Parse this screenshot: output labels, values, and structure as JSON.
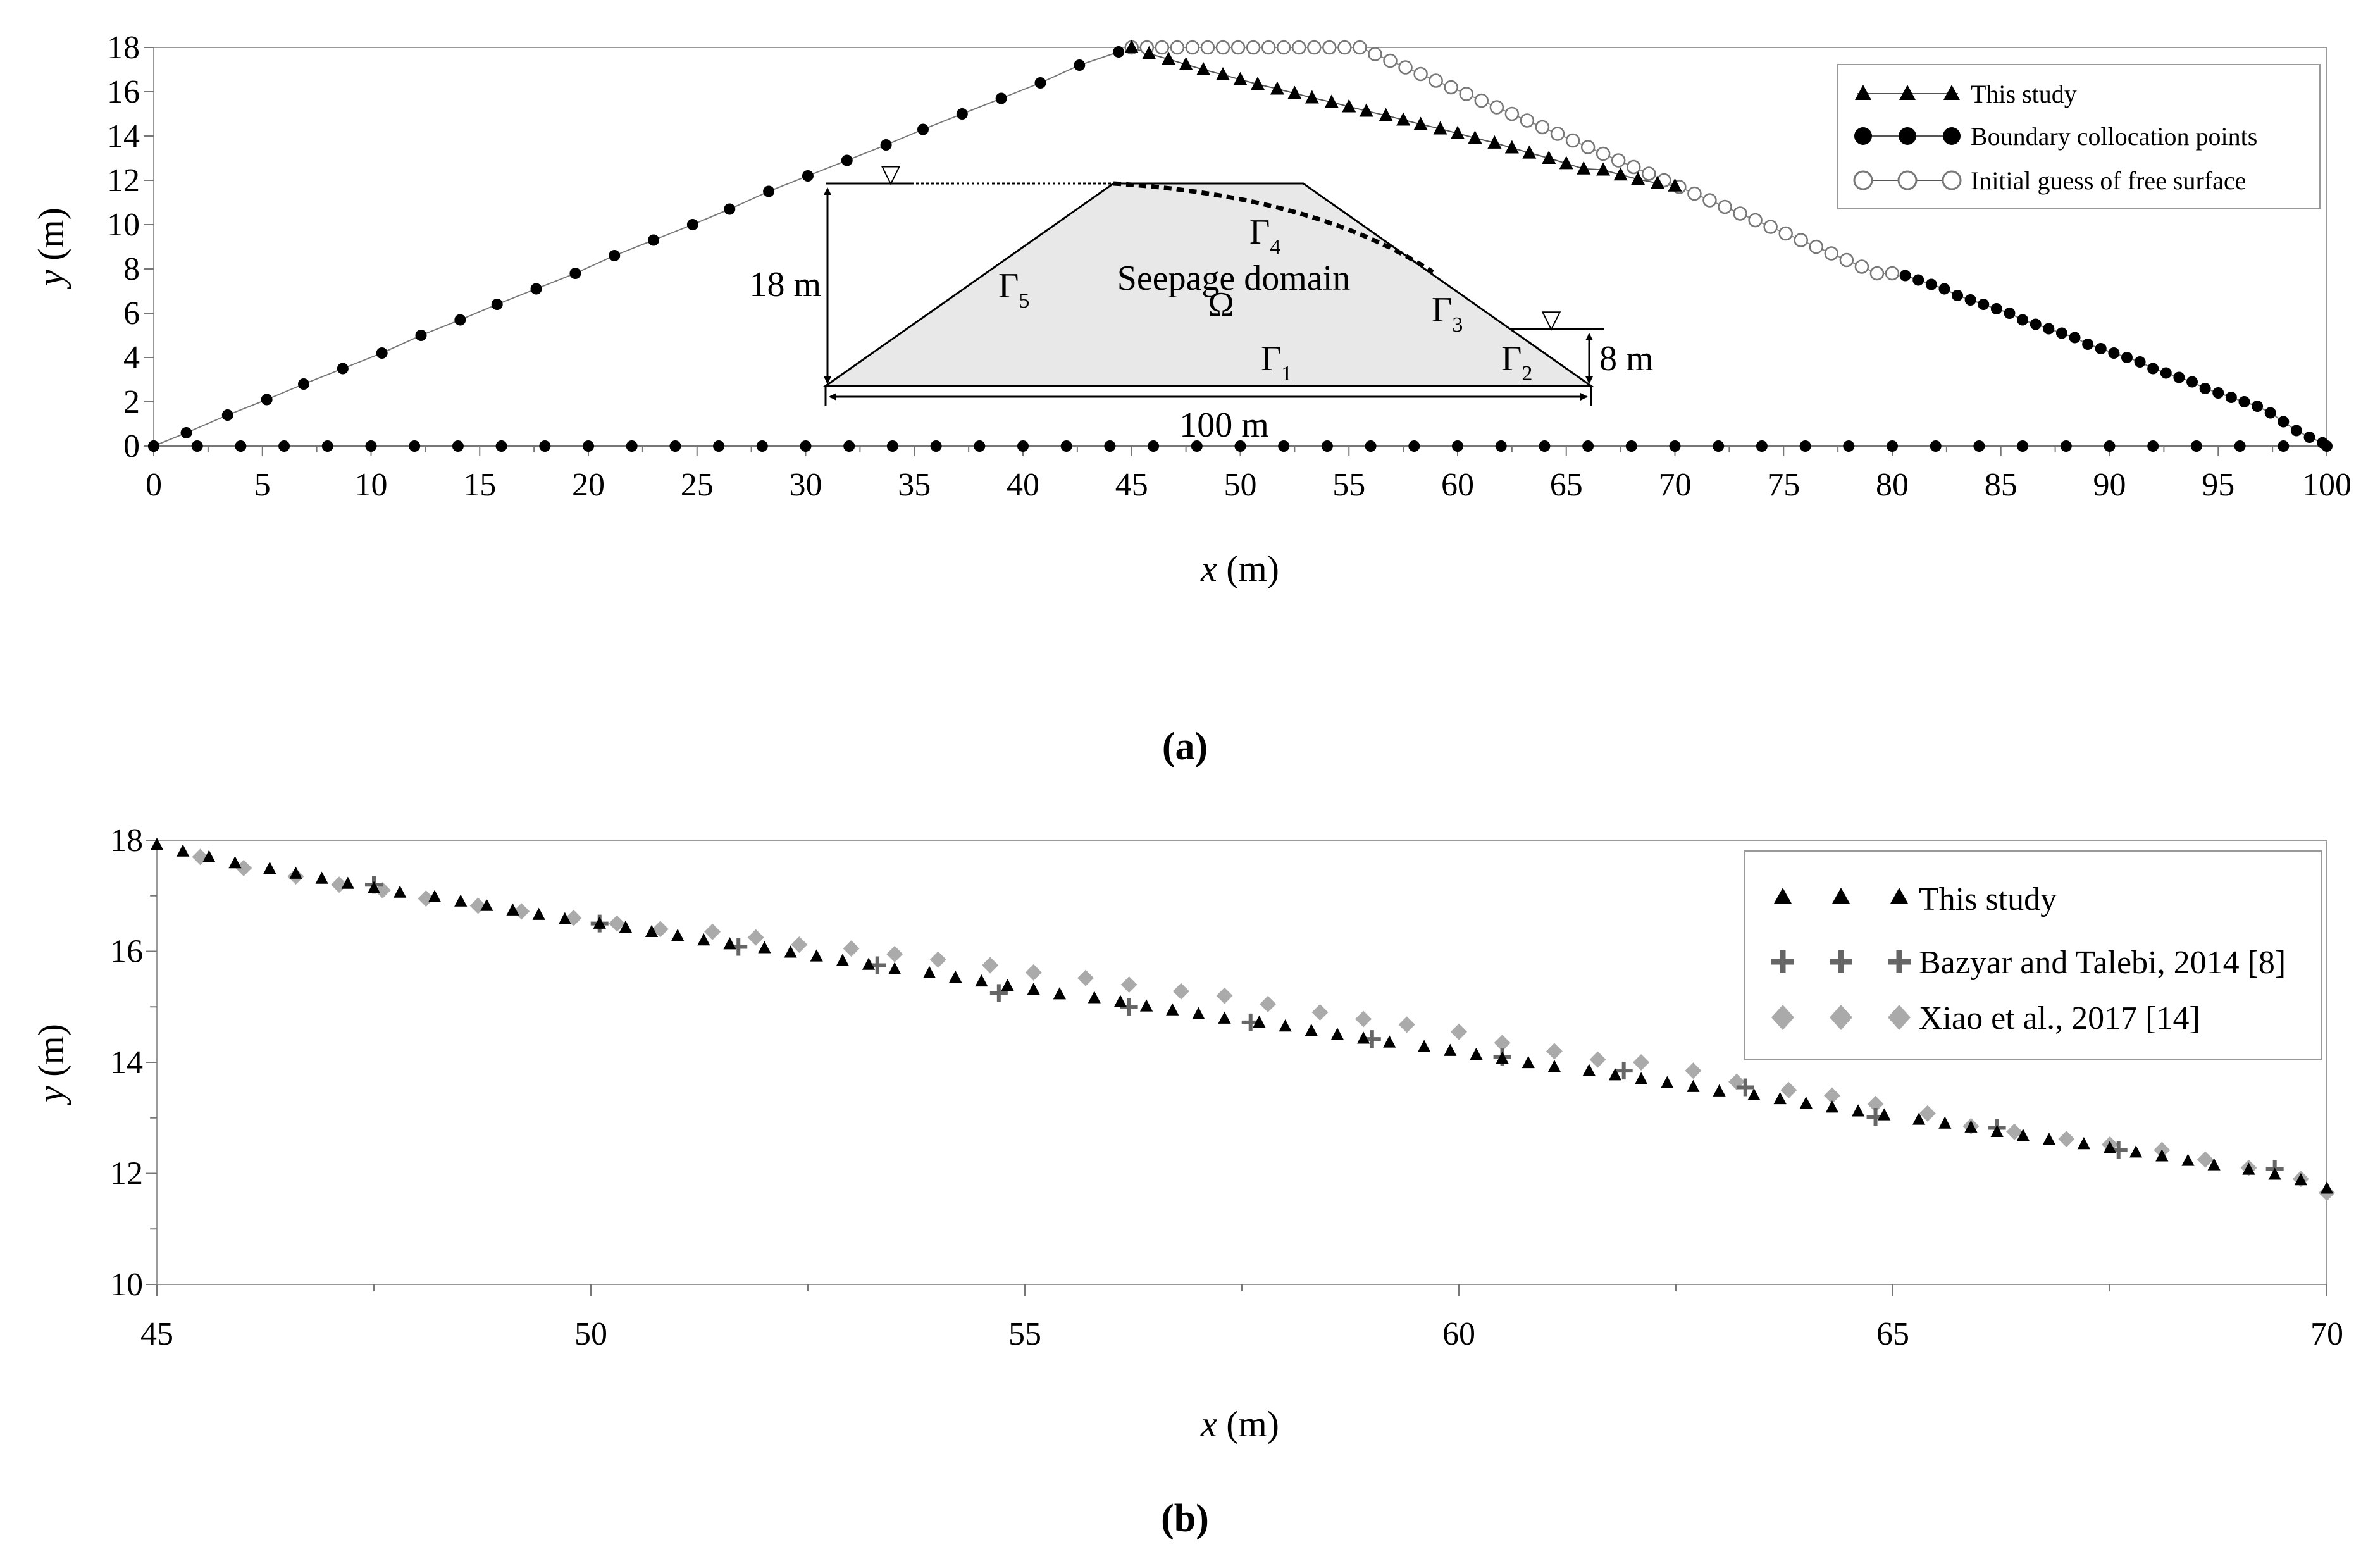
{
  "chart_data": [
    {
      "id": "a",
      "type": "scatter",
      "caption": "(a)",
      "xlabel_italic": "x",
      "xlabel_unit": "(m)",
      "ylabel_italic": "y",
      "ylabel_unit": "(m)",
      "xlim": [
        0,
        100
      ],
      "ylim": [
        0,
        18
      ],
      "xticks": [
        0,
        5,
        10,
        15,
        20,
        25,
        30,
        35,
        40,
        45,
        50,
        55,
        60,
        65,
        70,
        75,
        80,
        85,
        90,
        95,
        100
      ],
      "yticks": [
        0,
        2,
        4,
        6,
        8,
        10,
        12,
        14,
        16,
        18
      ],
      "legend": {
        "position": "top-right",
        "entries": [
          "This study",
          "Boundary collocation points",
          "Initial guess of free surface"
        ]
      },
      "series": [
        {
          "name": "This study",
          "marker": "triangle",
          "x": [
            45,
            45.8,
            46.7,
            47.5,
            48.3,
            49.2,
            50,
            50.8,
            51.7,
            52.5,
            53.3,
            54.2,
            55,
            55.8,
            56.7,
            57.5,
            58.3,
            59.2,
            60,
            60.8,
            61.7,
            62.5,
            63.3,
            64.2,
            65,
            65.8,
            66.7,
            67.5,
            68.3,
            69.2,
            70
          ],
          "y": [
            18,
            17.72,
            17.47,
            17.23,
            17.0,
            16.77,
            16.55,
            16.34,
            16.13,
            15.93,
            15.73,
            15.53,
            15.33,
            15.13,
            14.93,
            14.73,
            14.53,
            14.33,
            14.12,
            13.91,
            13.69,
            13.47,
            13.24,
            13.0,
            12.76,
            12.52,
            12.47,
            12.25,
            12.05,
            11.87,
            11.75
          ]
        },
        {
          "name": "Boundary collocation points",
          "marker": "filled-circle",
          "segments": [
            {
              "label": "upstream face",
              "x": [
                0,
                1.5,
                3.4,
                5.2,
                6.9,
                8.7,
                10.5,
                12.3,
                14.1,
                15.8,
                17.6,
                19.4,
                21.2,
                23.0,
                24.8,
                26.5,
                28.3,
                30.1,
                31.9,
                33.7,
                35.4,
                37.2,
                39.0,
                40.8,
                42.6,
                44.4
              ],
              "y": [
                0,
                0.6,
                1.4,
                2.1,
                2.8,
                3.5,
                4.2,
                5.0,
                5.7,
                6.4,
                7.1,
                7.8,
                8.6,
                9.3,
                10.0,
                10.7,
                11.5,
                12.2,
                12.9,
                13.6,
                14.3,
                15.0,
                15.7,
                16.4,
                17.2,
                17.8
              ]
            },
            {
              "label": "base",
              "x": [
                0,
                2,
                4,
                6,
                8,
                10,
                12,
                14,
                16,
                18,
                20,
                22,
                24,
                26,
                28,
                30,
                32,
                34,
                36,
                38,
                40,
                42,
                44,
                46,
                48,
                50,
                52,
                54,
                56,
                58,
                60,
                62,
                64,
                66,
                68,
                70,
                72,
                74,
                76,
                78,
                80,
                82,
                84,
                86,
                88,
                90,
                92,
                94,
                96,
                98,
                100
              ],
              "y": [
                0,
                0,
                0,
                0,
                0,
                0,
                0,
                0,
                0,
                0,
                0,
                0,
                0,
                0,
                0,
                0,
                0,
                0,
                0,
                0,
                0,
                0,
                0,
                0,
                0,
                0,
                0,
                0,
                0,
                0,
                0,
                0,
                0,
                0,
                0,
                0,
                0,
                0,
                0,
                0,
                0,
                0,
                0,
                0,
                0,
                0,
                0,
                0,
                0,
                0,
                0
              ]
            },
            {
              "label": "downstream face",
              "x": [
                80.6,
                81.2,
                81.8,
                82.4,
                83.0,
                83.6,
                84.2,
                84.8,
                85.4,
                86.0,
                86.6,
                87.2,
                87.8,
                88.4,
                89.0,
                89.6,
                90.2,
                90.8,
                91.4,
                92.0,
                92.6,
                93.2,
                93.8,
                94.4,
                95.0,
                95.6,
                96.2,
                96.8,
                97.4,
                98.0,
                98.6,
                99.2,
                99.8
              ],
              "y": [
                7.7,
                7.5,
                7.3,
                7.1,
                6.8,
                6.6,
                6.4,
                6.2,
                6.0,
                5.7,
                5.5,
                5.3,
                5.1,
                4.9,
                4.6,
                4.4,
                4.2,
                4.0,
                3.8,
                3.5,
                3.3,
                3.1,
                2.9,
                2.6,
                2.4,
                2.2,
                2.0,
                1.8,
                1.5,
                1.1,
                0.7,
                0.4,
                0.15
              ]
            }
          ]
        },
        {
          "name": "Initial guess of free surface",
          "marker": "open-circle",
          "x": [
            45,
            45.7,
            46.4,
            47.1,
            47.8,
            48.5,
            49.2,
            49.9,
            50.6,
            51.3,
            52.0,
            52.7,
            53.4,
            54.1,
            54.8,
            55.5,
            56.2,
            56.9,
            57.6,
            58.3,
            59.0,
            59.7,
            60.4,
            61.1,
            61.8,
            62.5,
            63.2,
            63.9,
            64.6,
            65.3,
            66.0,
            66.7,
            67.4,
            68.1,
            68.8,
            69.5,
            70.2,
            70.9,
            71.6,
            72.3,
            73.0,
            73.7,
            74.4,
            75.1,
            75.8,
            76.5,
            77.2,
            77.9,
            78.6,
            79.3,
            80.0
          ],
          "y": [
            18,
            18,
            18,
            18,
            18,
            18,
            18,
            18,
            18,
            18,
            18,
            18,
            18,
            18,
            18,
            18,
            17.7,
            17.4,
            17.1,
            16.8,
            16.5,
            16.2,
            15.9,
            15.6,
            15.3,
            15.0,
            14.7,
            14.4,
            14.1,
            13.8,
            13.5,
            13.2,
            12.9,
            12.6,
            12.3,
            12.0,
            11.7,
            11.4,
            11.1,
            10.8,
            10.5,
            10.2,
            9.9,
            9.6,
            9.3,
            9.0,
            8.7,
            8.4,
            8.1,
            7.8,
            7.8
          ]
        }
      ],
      "inset": {
        "labels": {
          "height": "18 m",
          "tail": "8 m",
          "width": "100 m",
          "domain": "Seepage domain",
          "omega": "Ω",
          "gamma": "Γ",
          "g1": "1",
          "g2": "2",
          "g3": "3",
          "g4": "4",
          "g5": "5",
          "water_symbol": "▽"
        }
      }
    },
    {
      "id": "b",
      "type": "scatter",
      "caption": "(b)",
      "xlabel_italic": "x",
      "xlabel_unit": "(m)",
      "ylabel_italic": "y",
      "ylabel_unit": "(m)",
      "xlim": [
        45,
        70
      ],
      "ylim": [
        10,
        18
      ],
      "xticks": [
        45,
        50,
        55,
        60,
        65,
        70
      ],
      "yticks": [
        10,
        12,
        14,
        16,
        18
      ],
      "legend": {
        "position": "top-right",
        "entries": [
          "This study",
          "Bazyar and Talebi, 2014 [8]",
          "Xiao et al., 2017 [14]"
        ]
      },
      "series": [
        {
          "name": "This study",
          "marker": "triangle",
          "x": [
            45.0,
            45.3,
            45.6,
            45.9,
            46.3,
            46.6,
            46.9,
            47.2,
            47.5,
            47.8,
            48.2,
            48.5,
            48.8,
            49.1,
            49.4,
            49.7,
            50.1,
            50.4,
            50.7,
            51.0,
            51.3,
            51.6,
            52.0,
            52.3,
            52.6,
            52.9,
            53.2,
            53.5,
            53.9,
            54.2,
            54.5,
            54.8,
            55.1,
            55.4,
            55.8,
            56.1,
            56.4,
            56.7,
            57.0,
            57.3,
            57.7,
            58.0,
            58.3,
            58.6,
            58.9,
            59.2,
            59.6,
            59.9,
            60.2,
            60.5,
            60.8,
            61.1,
            61.5,
            61.8,
            62.1,
            62.4,
            62.7,
            63.0,
            63.4,
            63.7,
            64.0,
            64.3,
            64.6,
            64.9,
            65.3,
            65.6,
            65.9,
            66.2,
            66.5,
            66.8,
            67.2,
            67.5,
            67.8,
            68.1,
            68.4,
            68.7,
            69.1,
            69.4,
            69.7,
            70.0
          ],
          "y": [
            17.92,
            17.8,
            17.7,
            17.59,
            17.49,
            17.4,
            17.31,
            17.22,
            17.14,
            17.06,
            16.98,
            16.9,
            16.82,
            16.74,
            16.66,
            16.58,
            16.5,
            16.43,
            16.35,
            16.28,
            16.2,
            16.13,
            16.06,
            15.98,
            15.91,
            15.83,
            15.76,
            15.68,
            15.61,
            15.53,
            15.46,
            15.38,
            15.31,
            15.23,
            15.16,
            15.09,
            15.01,
            14.94,
            14.87,
            14.79,
            14.72,
            14.65,
            14.57,
            14.5,
            14.43,
            14.36,
            14.28,
            14.21,
            14.14,
            14.07,
            13.99,
            13.92,
            13.85,
            13.77,
            13.7,
            13.63,
            13.56,
            13.48,
            13.41,
            13.34,
            13.26,
            13.19,
            13.12,
            13.05,
            12.97,
            12.9,
            12.83,
            12.75,
            12.68,
            12.61,
            12.53,
            12.46,
            12.38,
            12.31,
            12.23,
            12.15,
            12.07,
            11.98,
            11.88,
            11.73
          ]
        },
        {
          "name": "Bazyar and Talebi, 2014 [8]",
          "marker": "plus",
          "x": [
            47.5,
            50.1,
            51.7,
            53.3,
            54.7,
            56.2,
            57.6,
            59.0,
            60.5,
            61.9,
            63.3,
            64.8,
            66.2,
            67.6,
            69.4
          ],
          "y": [
            17.2,
            16.5,
            16.08,
            15.75,
            15.25,
            15.0,
            14.72,
            14.42,
            14.1,
            13.85,
            13.55,
            13.02,
            12.82,
            12.42,
            12.08
          ]
        },
        {
          "name": "Xiao et al., 2017 [14]",
          "marker": "diamond",
          "x": [
            45.5,
            46.0,
            46.6,
            47.1,
            47.6,
            48.1,
            48.7,
            49.2,
            49.8,
            50.3,
            50.8,
            51.4,
            51.9,
            52.4,
            53.0,
            53.5,
            54.0,
            54.6,
            55.1,
            55.7,
            56.2,
            56.8,
            57.3,
            57.8,
            58.4,
            58.9,
            59.4,
            60.0,
            60.5,
            61.1,
            61.6,
            62.1,
            62.7,
            63.2,
            63.8,
            64.3,
            64.8,
            65.4,
            65.9,
            66.4,
            67.0,
            67.5,
            68.1,
            68.6,
            69.1,
            69.7,
            70.0
          ],
          "y": [
            17.7,
            17.5,
            17.35,
            17.2,
            17.1,
            16.95,
            16.82,
            16.72,
            16.6,
            16.5,
            16.4,
            16.35,
            16.25,
            16.12,
            16.05,
            15.95,
            15.85,
            15.75,
            15.62,
            15.52,
            15.4,
            15.28,
            15.2,
            15.05,
            14.9,
            14.78,
            14.68,
            14.55,
            14.35,
            14.2,
            14.05,
            14.0,
            13.85,
            13.65,
            13.5,
            13.4,
            13.25,
            13.08,
            12.85,
            12.75,
            12.62,
            12.52,
            12.42,
            12.25,
            12.1,
            11.9,
            11.65
          ]
        }
      ]
    }
  ]
}
